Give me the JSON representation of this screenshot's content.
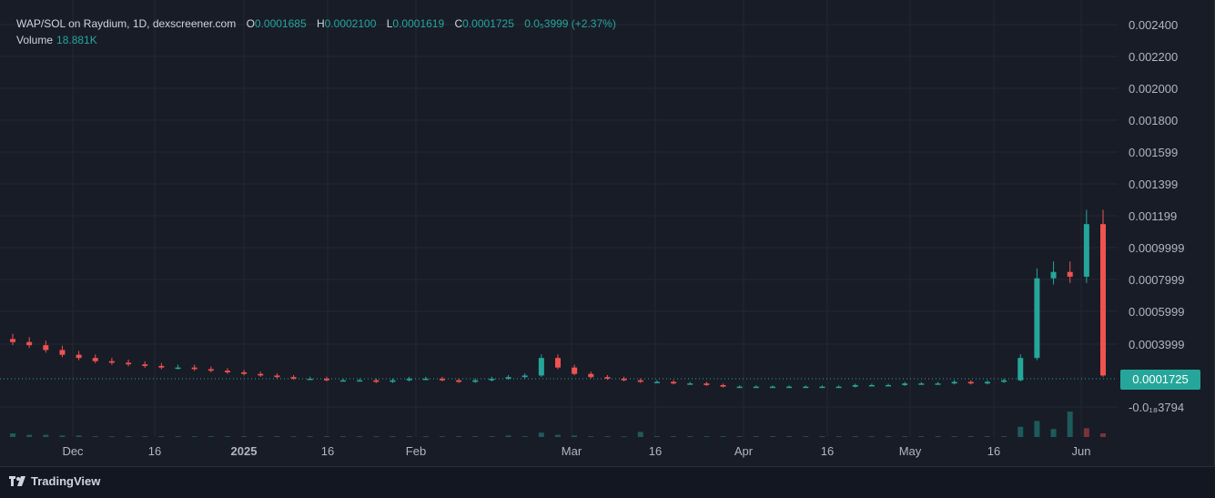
{
  "legend": {
    "title": "WAP/SOL on Raydium, 1D, dexscreener.com",
    "open_label": "O",
    "open": "0.0001685",
    "high_label": "H",
    "high": "0.0002100",
    "low_label": "L",
    "low": "0.0001619",
    "close_label": "C",
    "close": "0.0001725",
    "change": "0.0₅3999 (+2.37%)",
    "volume_label": "Volume",
    "volume": "18.881K"
  },
  "last_price": "0.0001725",
  "brand": "TradingView",
  "colors": {
    "up": "#26a69a",
    "down": "#ef5350",
    "bg": "#181c27",
    "grid": "#232733",
    "text": "#b2b5be"
  },
  "chart_data": {
    "type": "candlestick",
    "title": "WAP/SOL on Raydium, 1D, dexscreener.com",
    "y_ticks": [
      "0.002400",
      "0.002200",
      "0.002000",
      "0.001800",
      "0.001599",
      "0.001399",
      "0.001199",
      "0.0009999",
      "0.0007999",
      "0.0005999",
      "0.0003999",
      "0.0001725",
      "-0.0₁₈3794"
    ],
    "x_ticks": [
      "Dec",
      "16",
      "2025",
      "16",
      "Feb",
      "Mar",
      "16",
      "Apr",
      "16",
      "May",
      "16",
      "Jun"
    ],
    "ylim": [
      -0.0001,
      0.0024
    ],
    "series": [
      {
        "name": "Price",
        "values": [
          0.00038,
          0.00036,
          0.00033,
          0.0003,
          0.00028,
          0.00026,
          0.00025,
          0.00024,
          0.00023,
          0.00022,
          0.00022,
          0.00021,
          0.0002,
          0.00019,
          0.00018,
          0.00017,
          0.00016,
          0.00015,
          0.00015,
          0.00014,
          0.00014,
          0.00014,
          0.00013,
          0.00014,
          0.00015,
          0.00015,
          0.00014,
          0.00013,
          0.00014,
          0.00015,
          0.00016,
          0.00017,
          0.00028,
          0.00022,
          0.00018,
          0.00016,
          0.00015,
          0.00014,
          0.00013,
          0.00013,
          0.00012,
          0.00012,
          0.00011,
          0.0001,
          0.0001,
          0.0001,
          0.0001,
          0.0001,
          0.0001,
          0.0001,
          0.0001,
          0.00011,
          0.00011,
          0.00011,
          0.00012,
          0.00012,
          0.00012,
          0.00013,
          0.00012,
          0.00013,
          0.00014,
          0.00028,
          0.00078,
          0.00082,
          0.00079,
          0.00112,
          0.00017
        ]
      }
    ],
    "volume": [
      5,
      3,
      3,
      2,
      2,
      1,
      1,
      1,
      1,
      1,
      1,
      1,
      1,
      1,
      1,
      1,
      1,
      1,
      1,
      1,
      1,
      1,
      1,
      1,
      1,
      1,
      1,
      1,
      1,
      1,
      2,
      1,
      6,
      3,
      2,
      1,
      1,
      1,
      7,
      1,
      1,
      1,
      1,
      1,
      1,
      1,
      1,
      1,
      1,
      1,
      1,
      1,
      1,
      1,
      1,
      1,
      1,
      1,
      1,
      1,
      1,
      14,
      22,
      11,
      35,
      12,
      5
    ]
  }
}
